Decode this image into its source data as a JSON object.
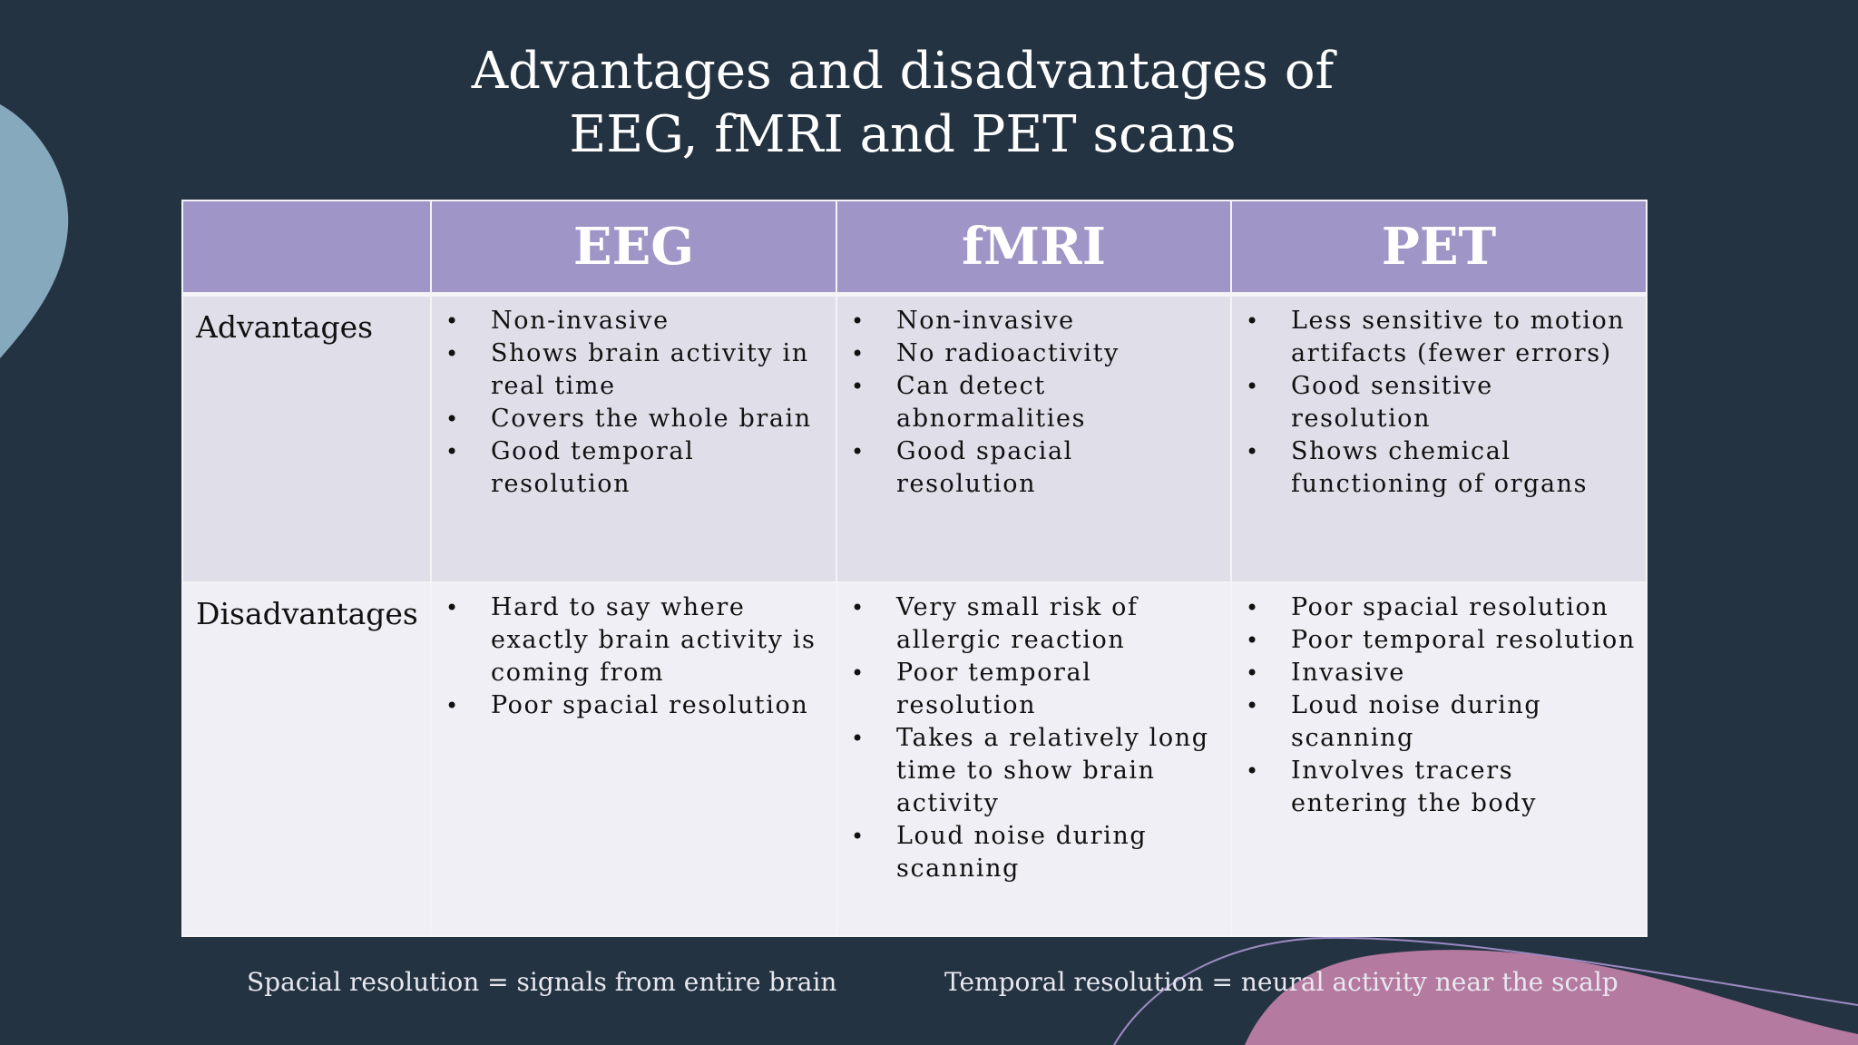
{
  "slide": {
    "title_line1": "Advantages and disadvantages of",
    "title_line2": "EEG, fMRI and PET scans"
  },
  "table": {
    "columns": [
      "",
      "EEG",
      "fMRI",
      "PET"
    ],
    "rows": [
      {
        "label": "Advantages",
        "cells": [
          [
            "Non-invasive",
            "Shows brain activity in real time",
            "Covers the whole brain",
            "Good temporal resolution"
          ],
          [
            "Non-invasive",
            "No radioactivity",
            "Can detect abnormalities",
            "Good spacial resolution"
          ],
          [
            "Less sensitive to motion artifacts (fewer errors)",
            "Good sensitive resolution",
            "Shows chemical functioning of organs"
          ]
        ]
      },
      {
        "label": "Disadvantages",
        "cells": [
          [
            "Hard to say where exactly brain activity is coming from",
            "Poor spacial resolution"
          ],
          [
            "Very small risk of allergic reaction",
            "Poor temporal resolution",
            "Takes a relatively long time to show brain activity",
            "Loud noise during scanning"
          ],
          [
            "Poor spacial resolution",
            "Poor temporal resolution",
            "Invasive",
            "Loud noise during scanning",
            "Involves tracers entering the body"
          ]
        ]
      }
    ]
  },
  "footnotes": {
    "spatial": "Spacial resolution = signals from entire brain",
    "temporal": "Temporal resolution = neural activity near the scalp"
  },
  "bullet_glyph": "•",
  "colors": {
    "background": "#243342",
    "header": "#a095c7",
    "advantages_row": "#e0dfe9",
    "disadvantages_row": "#efeff5",
    "blob_left": "#86a9bd",
    "blob_bottom": "#b57aa0"
  }
}
